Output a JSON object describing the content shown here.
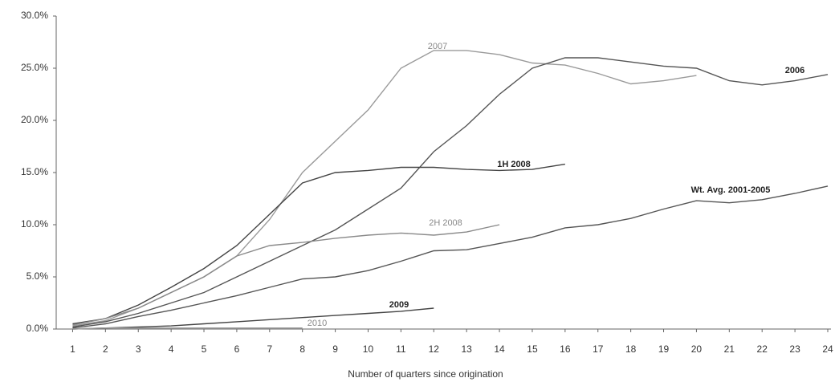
{
  "chart_data": {
    "type": "line",
    "x_label": "Number of quarters since origination",
    "x": [
      1,
      2,
      3,
      4,
      5,
      6,
      7,
      8,
      9,
      10,
      11,
      12,
      13,
      14,
      15,
      16,
      17,
      18,
      19,
      20,
      21,
      22,
      23,
      24
    ],
    "xlim": [
      0.5,
      24
    ],
    "xticks": [
      1,
      2,
      3,
      4,
      5,
      6,
      7,
      8,
      9,
      10,
      11,
      12,
      13,
      14,
      15,
      16,
      17,
      18,
      19,
      20,
      21,
      22,
      23,
      24
    ],
    "ylim": [
      0,
      30
    ],
    "yticks": [
      {
        "value": 0,
        "label": "0.0%"
      },
      {
        "value": 5,
        "label": "5.0%"
      },
      {
        "value": 10,
        "label": "10.0%"
      },
      {
        "value": 15,
        "label": "15.0%"
      },
      {
        "value": 20,
        "label": "20.0%"
      },
      {
        "value": 25,
        "label": "25.0%"
      },
      {
        "value": 30,
        "label": "30.0%"
      }
    ],
    "series": [
      {
        "name": "2007",
        "color": "#9a9a9a",
        "values": [
          0.3,
          0.8,
          2.0,
          3.5,
          5.0,
          7.0,
          10.5,
          15.0,
          18.0,
          21.0,
          25.0,
          26.7,
          26.7,
          26.3,
          25.5,
          25.3,
          24.5,
          23.5,
          23.8,
          24.3,
          null,
          null,
          null,
          null
        ]
      },
      {
        "name": "2006",
        "color": "#555555",
        "values": [
          0.2,
          0.7,
          1.5,
          2.5,
          3.5,
          5.0,
          6.5,
          8.0,
          9.5,
          11.5,
          13.5,
          17.0,
          19.5,
          22.5,
          25.0,
          26.0,
          26.0,
          25.6,
          25.2,
          25.0,
          23.8,
          23.4,
          23.8,
          24.4
        ]
      },
      {
        "name": "1H 2008",
        "color": "#444444",
        "values": [
          0.5,
          1.0,
          2.3,
          4.0,
          5.8,
          8.0,
          11.0,
          14.0,
          15.0,
          15.2,
          15.5,
          15.5,
          15.3,
          15.2,
          15.3,
          15.8,
          null,
          null,
          null,
          null,
          null,
          null,
          null,
          null
        ]
      },
      {
        "name": "2H 2008",
        "color": "#8a8a8a",
        "values": [
          0.4,
          1.0,
          2.0,
          3.5,
          5.0,
          7.0,
          8.0,
          8.3,
          8.7,
          9.0,
          9.2,
          9.0,
          9.3,
          10.0,
          null,
          null,
          null,
          null,
          null,
          null,
          null,
          null,
          null,
          null
        ]
      },
      {
        "name": "Wt. Avg. 2001-2005",
        "color": "#555555",
        "values": [
          0.1,
          0.5,
          1.2,
          1.8,
          2.5,
          3.2,
          4.0,
          4.8,
          5.0,
          5.6,
          6.5,
          7.5,
          7.6,
          8.2,
          8.8,
          9.7,
          10.0,
          10.6,
          11.5,
          12.3,
          12.1,
          12.4,
          13.0,
          13.7
        ]
      },
      {
        "name": "2009",
        "color": "#444444",
        "values": [
          0.0,
          0.1,
          0.2,
          0.3,
          0.5,
          0.7,
          0.9,
          1.1,
          1.3,
          1.5,
          1.7,
          2.0,
          null,
          null,
          null,
          null,
          null,
          null,
          null,
          null,
          null,
          null,
          null,
          null
        ]
      },
      {
        "name": "2010",
        "color": "#9a9a9a",
        "values": [
          0.0,
          0.1,
          0.1,
          0.1,
          0.1,
          0.1,
          0.1,
          0.1,
          null,
          null,
          null,
          null,
          null,
          null,
          null,
          null,
          null,
          null,
          null,
          null,
          null,
          null,
          null,
          null
        ]
      }
    ]
  }
}
